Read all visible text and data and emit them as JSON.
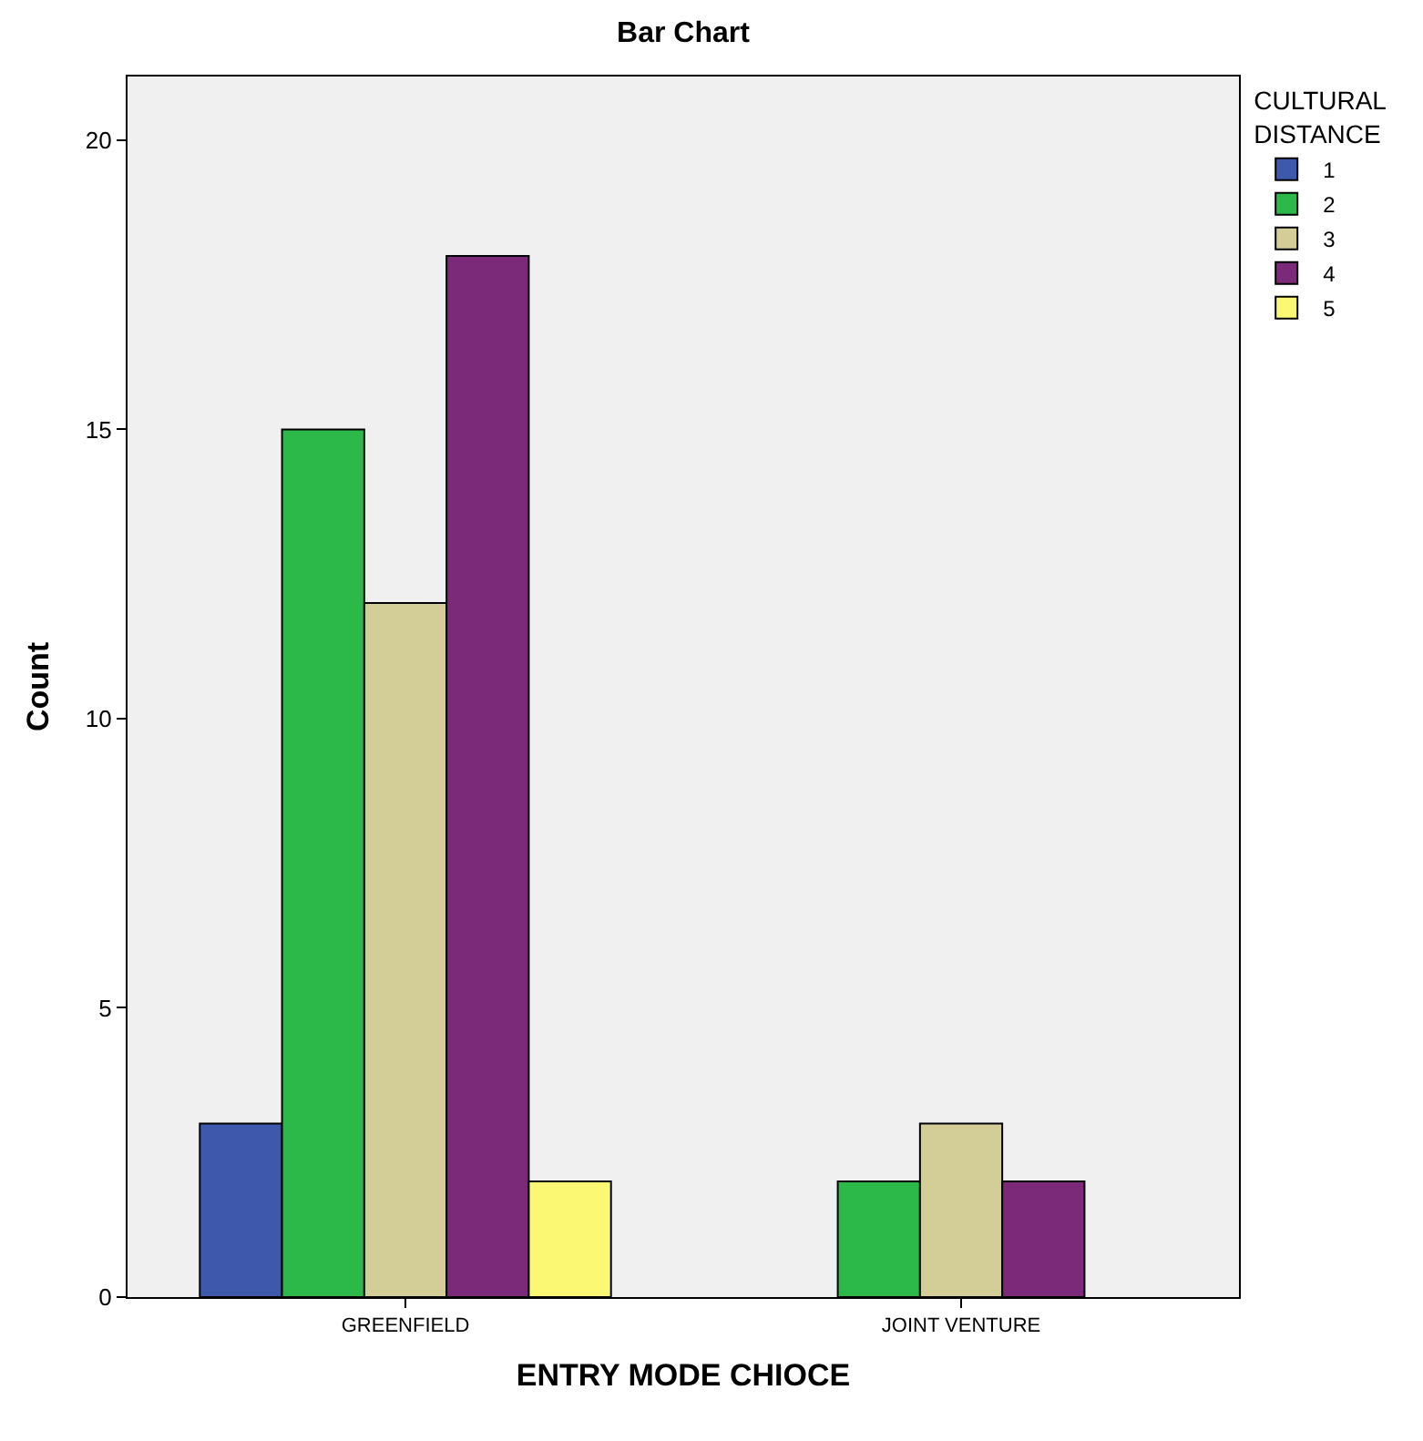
{
  "chart_data": {
    "type": "bar",
    "title": "Bar Chart",
    "xlabel": "ENTRY MODE CHIOCE",
    "ylabel": "Count",
    "legend_title": "CULTURAL DISTANCE",
    "categories": [
      "GREENFIELD",
      "JOINT VENTURE"
    ],
    "series": [
      {
        "name": "1",
        "color": "#3e58ac",
        "values": [
          3,
          null
        ]
      },
      {
        "name": "2",
        "color": "#2db84a",
        "values": [
          15,
          2
        ]
      },
      {
        "name": "3",
        "color": "#d3ce98",
        "values": [
          12,
          3
        ]
      },
      {
        "name": "4",
        "color": "#7b2a7a",
        "values": [
          18,
          2
        ]
      },
      {
        "name": "5",
        "color": "#fbf873",
        "values": [
          2,
          null
        ]
      }
    ],
    "ylim": [
      0,
      21.1
    ],
    "yticks": [
      0,
      5,
      10,
      15,
      20
    ],
    "grid": false,
    "legend": "top right"
  }
}
